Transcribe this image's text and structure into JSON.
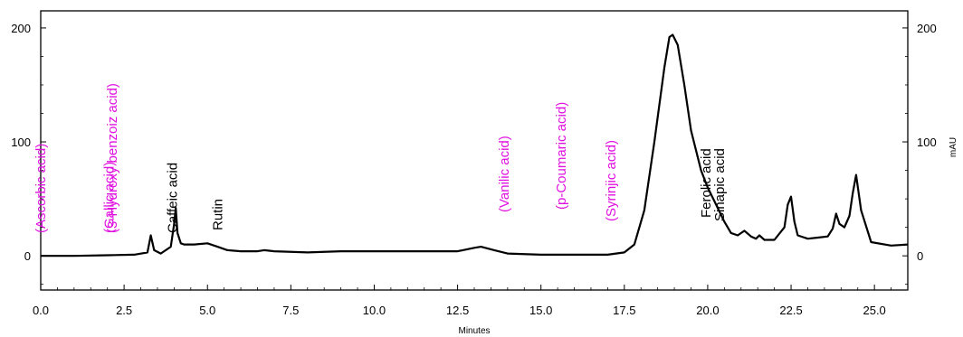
{
  "colors": {
    "trace": "#000000",
    "absent": "#e010e0",
    "present": "#000000",
    "frame": "#000000"
  },
  "chart_data": {
    "type": "line",
    "xlabel": "Minutes",
    "ylabel": "",
    "y2label": "mAU",
    "xlim": [
      0,
      26
    ],
    "ylim": [
      -30,
      215
    ],
    "x_ticks": [
      "0.0",
      "2.5",
      "5.0",
      "7.5",
      "10.0",
      "12.5",
      "15.0",
      "17.5",
      "20.0",
      "22.5",
      "25.0"
    ],
    "x_tick_values": [
      0,
      2.5,
      5,
      7.5,
      10,
      12.5,
      15,
      17.5,
      20,
      22.5,
      25
    ],
    "y_ticks": [
      "0",
      "100",
      "200"
    ],
    "y_tick_values": [
      0,
      100,
      200
    ],
    "y2_ticks": [
      "0",
      "100",
      "200"
    ],
    "grid": false,
    "series": [
      {
        "x": [
          0,
          1.0,
          2.0,
          2.8,
          3.2,
          3.3,
          3.4,
          3.6,
          3.9,
          4.0,
          4.05,
          4.1,
          4.2,
          4.3,
          4.6,
          5.0,
          5.3,
          5.6,
          6.0,
          6.5,
          6.7,
          7.0,
          8.0,
          9.0,
          9.5,
          10.0,
          11.0,
          12.0,
          12.5,
          13.0,
          13.2,
          13.6,
          14.0,
          15.0,
          16.0,
          17.0,
          17.5,
          17.8,
          18.1,
          18.4,
          18.7,
          18.85,
          18.95,
          19.1,
          19.3,
          19.5,
          19.8,
          20.0,
          20.2,
          20.5,
          20.7,
          20.9,
          21.1,
          21.3,
          21.45,
          21.55,
          21.7,
          22.0,
          22.3,
          22.4,
          22.5,
          22.6,
          22.7,
          23.0,
          23.3,
          23.6,
          23.75,
          23.85,
          23.95,
          24.1,
          24.25,
          24.35,
          24.45,
          24.6,
          24.9,
          25.5,
          26.0
        ],
        "y": [
          0,
          0,
          0.5,
          1,
          3,
          18,
          5,
          2,
          8,
          28,
          42,
          20,
          11,
          10,
          10,
          11,
          8,
          5,
          4,
          4,
          5,
          4,
          3,
          4,
          4,
          4,
          4,
          4,
          4,
          7,
          8,
          5,
          2,
          1,
          1,
          1,
          3,
          10,
          40,
          100,
          165,
          192,
          194,
          185,
          150,
          110,
          75,
          60,
          48,
          30,
          20,
          18,
          22,
          17,
          15,
          18,
          14,
          14,
          25,
          45,
          52,
          30,
          18,
          15,
          16,
          17,
          24,
          37,
          28,
          25,
          35,
          55,
          71,
          40,
          12,
          9,
          10
        ]
      }
    ],
    "annotations": [
      {
        "text": "(Ascorbic acid)",
        "x": 0.0,
        "status": "absent"
      },
      {
        "text": "(Gallic acid)",
        "x": 2.05,
        "status": "absent"
      },
      {
        "text": "(3-Hydroxy benzoiz acid)",
        "x": 2.15,
        "status": "absent"
      },
      {
        "text": "Caffeic acid",
        "x": 3.95,
        "status": "present"
      },
      {
        "text": "Rutin",
        "x": 5.3,
        "status": "present"
      },
      {
        "text": "(Vanilic acid)",
        "x": 13.9,
        "status": "absent"
      },
      {
        "text": "(p-Coumaric acid)",
        "x": 15.6,
        "status": "absent"
      },
      {
        "text": "(Syrinjic acid)",
        "x": 17.1,
        "status": "absent"
      },
      {
        "text": "Ferolic acid",
        "x": 19.95,
        "status": "present"
      },
      {
        "text": "Sinapic acid",
        "x": 20.35,
        "status": "present"
      }
    ]
  }
}
